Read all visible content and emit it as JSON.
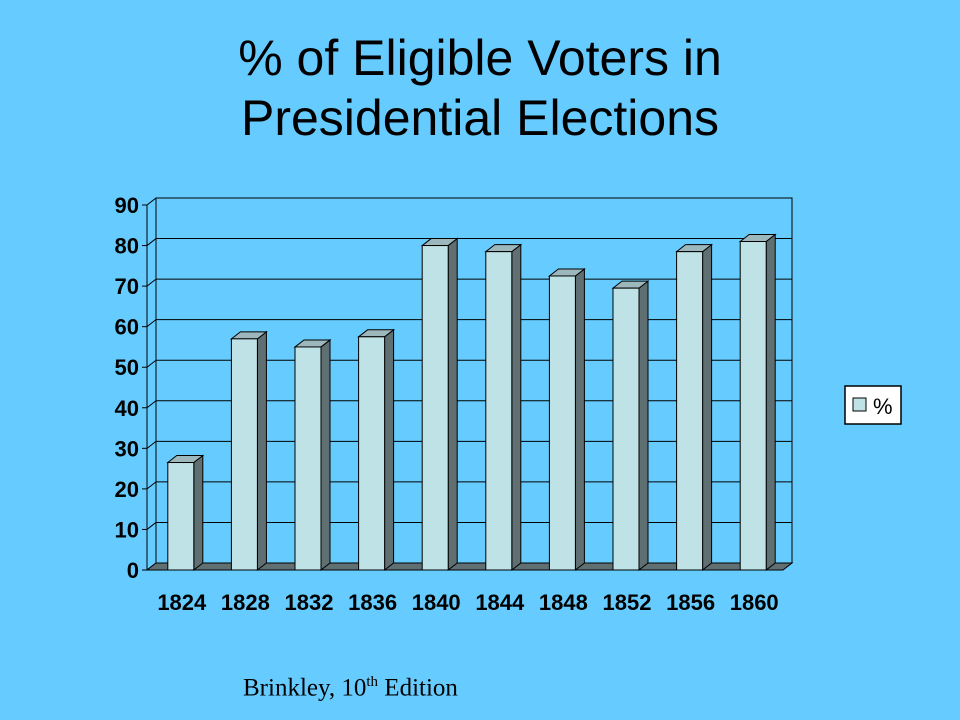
{
  "slide": {
    "title_line1": "% of Eligible Voters in",
    "title_line2": "Presidential Elections",
    "source_prefix": "Brinkley, 10",
    "source_sup": "th",
    "source_suffix": " Edition"
  },
  "colors": {
    "background": "#66ccff",
    "bar_front": "#bfe2e6",
    "bar_side": "#5f6f72",
    "bar_top": "#9db8bc",
    "gridline": "#000000"
  },
  "chart_data": {
    "type": "bar",
    "title": "% of Eligible Voters in Presidential Elections",
    "categories": [
      "1824",
      "1828",
      "1832",
      "1836",
      "1840",
      "1844",
      "1848",
      "1852",
      "1856",
      "1860"
    ],
    "series": [
      {
        "name": "%",
        "values": [
          26.5,
          57,
          55,
          57.5,
          80,
          78.5,
          72.5,
          69.5,
          78.5,
          81
        ]
      }
    ],
    "ylim": [
      0,
      90
    ],
    "yticks": [
      "0",
      "10",
      "20",
      "30",
      "40",
      "50",
      "60",
      "70",
      "80",
      "90"
    ],
    "grid": true,
    "legend": "right",
    "style": "3d-bar"
  }
}
